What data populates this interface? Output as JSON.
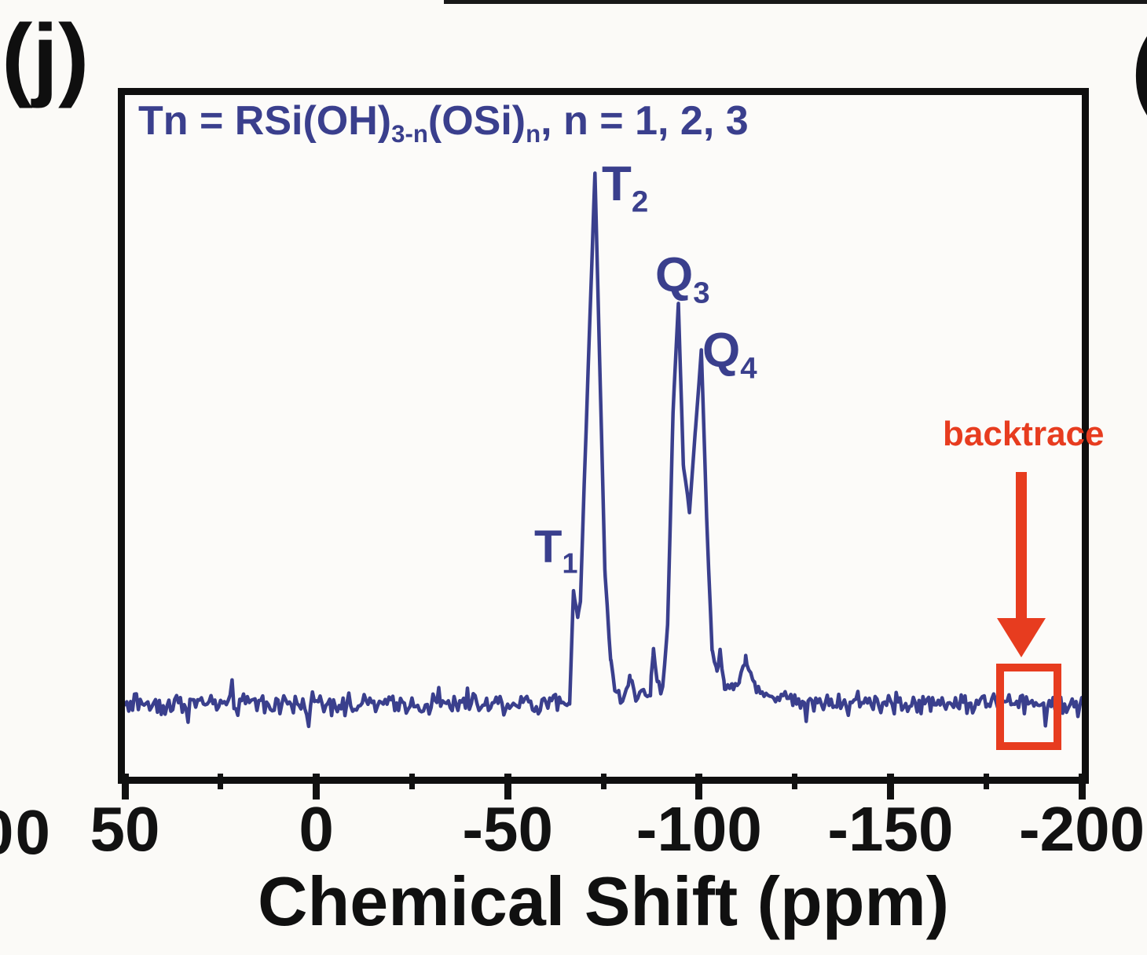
{
  "panel_label": "(j)",
  "adjacent_panel_partial_glyph": "(",
  "left_edge_partial_label": "00",
  "colors": {
    "trace": "#3a3f8d",
    "peak_labels": "#3a3f8d",
    "annotation_text": "#3a3f8d",
    "red_accent": "#e73c1f",
    "axis_ink": "#121212",
    "background": "#fbfaf7"
  },
  "formula": {
    "p1": "Tn = RSi(OH)",
    "s1": "3-n",
    "p2": "(OSi)",
    "s2": "n",
    "p3": ", n = 1, 2, 3"
  },
  "red_annotation": {
    "label": "backtrace",
    "target_ppm_range": [
      -178,
      -194.5
    ]
  },
  "chart_data": {
    "type": "line",
    "title": "",
    "xlabel": "Chemical Shift (ppm)",
    "ylabel": "",
    "x_range": [
      50,
      -200
    ],
    "x_axis_reversed": true,
    "grid": false,
    "x_major_ticks": [
      {
        "ppm": 50,
        "label": "50"
      },
      {
        "ppm": 0,
        "label": "0"
      },
      {
        "ppm": -50,
        "label": "-50"
      },
      {
        "ppm": -100,
        "label": "-100"
      },
      {
        "ppm": -150,
        "label": "-150"
      },
      {
        "ppm": -200,
        "label": "-200"
      }
    ],
    "x_minor_tick_step": 25,
    "peaks": [
      {
        "label_main": "T",
        "label_sub": "1",
        "ppm": -67,
        "rel_intensity": 0.21
      },
      {
        "label_main": "T",
        "label_sub": "2",
        "ppm": -73,
        "rel_intensity": 1.0
      },
      {
        "label_main": "Q",
        "label_sub": "3",
        "ppm": -95,
        "rel_intensity": 0.76
      },
      {
        "label_main": "Q",
        "label_sub": "4",
        "ppm": -101,
        "rel_intensity": 0.67
      }
    ],
    "envelope": [
      [
        50,
        0
      ],
      [
        -63.5,
        0
      ],
      [
        -66.2,
        0.01
      ],
      [
        -67.2,
        0.213
      ],
      [
        -68.3,
        0.16
      ],
      [
        -69.0,
        0.19
      ],
      [
        -69.7,
        0.35
      ],
      [
        -72.8,
        1.0
      ],
      [
        -74.2,
        0.6
      ],
      [
        -75.4,
        0.25
      ],
      [
        -76.9,
        0.08
      ],
      [
        -78.5,
        0.012
      ],
      [
        -80.5,
        0.012
      ],
      [
        -81.9,
        0.05
      ],
      [
        -83.5,
        0.018
      ],
      [
        -87.3,
        0.02
      ],
      [
        -88.1,
        0.105
      ],
      [
        -89.1,
        0.04
      ],
      [
        -90.5,
        0.025
      ],
      [
        -91.8,
        0.15
      ],
      [
        -93.2,
        0.55
      ],
      [
        -94.6,
        0.755
      ],
      [
        -95.9,
        0.45
      ],
      [
        -97.5,
        0.361
      ],
      [
        -99.1,
        0.52
      ],
      [
        -100.6,
        0.666
      ],
      [
        -102.0,
        0.35
      ],
      [
        -103.4,
        0.1
      ],
      [
        -104.7,
        0.06
      ],
      [
        -105.5,
        0.097
      ],
      [
        -106.7,
        0.035
      ],
      [
        -108.6,
        0.03
      ],
      [
        -110.6,
        0.05
      ],
      [
        -112.2,
        0.082
      ],
      [
        -114.3,
        0.04
      ],
      [
        -117.0,
        0.022
      ],
      [
        -122.0,
        0.01
      ],
      [
        -130.0,
        0.004
      ],
      [
        -200,
        0
      ]
    ],
    "noise": {
      "amplitude": 0.024,
      "seed": 1234,
      "step_ppm": 0.5,
      "spike_prob": 0.07,
      "spike_gain": 2.0
    }
  }
}
